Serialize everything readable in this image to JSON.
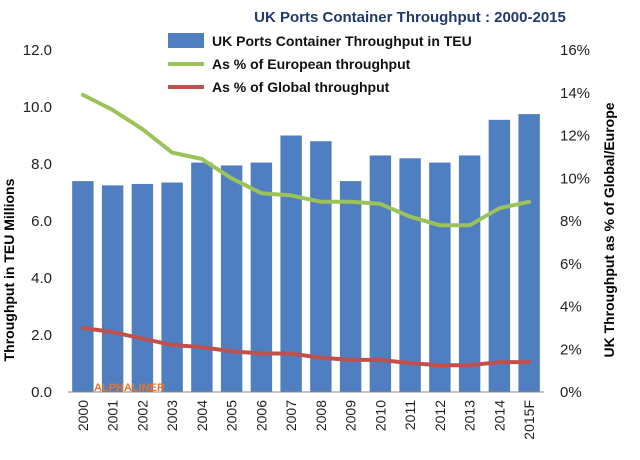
{
  "chart_data": {
    "type": "bar",
    "title": "UK Ports Container Throughput : 2000-2015",
    "categories": [
      "2000",
      "2001",
      "2002",
      "2003",
      "2004",
      "2005",
      "2006",
      "2007",
      "2008",
      "2009",
      "2010",
      "2011",
      "2012",
      "2013",
      "2014",
      "2015F"
    ],
    "series": [
      {
        "name": "UK Ports Container Throughput in TEU",
        "type": "bar",
        "axis": "left",
        "color": "#4f7fc1",
        "values": [
          7.4,
          7.25,
          7.3,
          7.35,
          8.05,
          7.95,
          8.05,
          9.0,
          8.8,
          7.4,
          8.3,
          8.2,
          8.05,
          8.3,
          9.55,
          9.75
        ]
      },
      {
        "name": "As % of European throughput",
        "type": "line",
        "axis": "right",
        "color": "#9bc35a",
        "values": [
          13.9,
          13.2,
          12.3,
          11.2,
          10.9,
          10.0,
          9.3,
          9.2,
          8.9,
          8.9,
          8.8,
          8.2,
          7.8,
          7.8,
          8.6,
          8.9
        ]
      },
      {
        "name": "As % of Global throughput",
        "type": "line",
        "axis": "right",
        "color": "#c0504d",
        "values": [
          3.0,
          2.8,
          2.5,
          2.2,
          2.1,
          1.9,
          1.8,
          1.8,
          1.6,
          1.5,
          1.5,
          1.35,
          1.25,
          1.25,
          1.4,
          1.4
        ]
      }
    ],
    "ylabel": "Throughput in TEU Millions",
    "y2label": "UK Throughput as % of Global/Europe",
    "ylim": [
      0,
      12
    ],
    "y2lim": [
      0,
      16
    ],
    "yticks": [
      "0.0",
      "2.0",
      "4.0",
      "6.0",
      "8.0",
      "10.0",
      "12.0"
    ],
    "y2ticks": [
      "0%",
      "2%",
      "4%",
      "6%",
      "8%",
      "10%",
      "12%",
      "14%",
      "16%"
    ],
    "watermark": "ALPHALINER",
    "legend_position": "top",
    "grid": false
  }
}
